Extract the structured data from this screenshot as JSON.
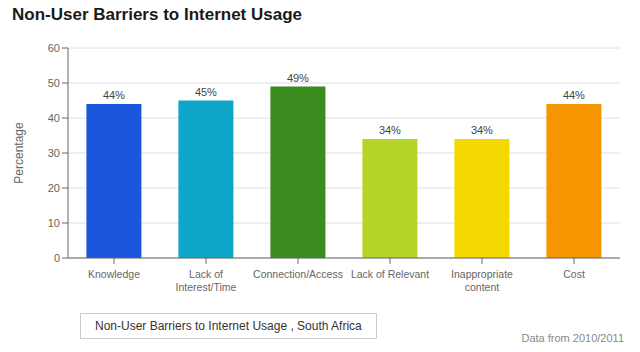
{
  "chart_data": {
    "type": "bar",
    "title": "Non-User Barriers to Internet Usage",
    "categories": [
      "Knowledge",
      "Lack of\nInterest/Time",
      "Connection/Access",
      "Lack of Relevant",
      "Inappropriate\ncontent",
      "Cost"
    ],
    "series": [
      {
        "name": "Non-User Barriers to Internet Usage , South Africa",
        "values": [
          44,
          45,
          49,
          34,
          34,
          44
        ],
        "value_labels": [
          "44%",
          "45%",
          "49%",
          "34%",
          "34%",
          "44%"
        ],
        "colors": [
          "#1a56db",
          "#0ea5c8",
          "#3a8c1e",
          "#b5d429",
          "#f5d800",
          "#f59500"
        ]
      }
    ],
    "ylabel": "Percentage",
    "ylim": [
      0,
      60
    ],
    "yticks": [
      0,
      10,
      20,
      30,
      40,
      50,
      60
    ],
    "grid": true,
    "data_labels": true,
    "annotations": [
      "Data from 2010/2011"
    ]
  }
}
